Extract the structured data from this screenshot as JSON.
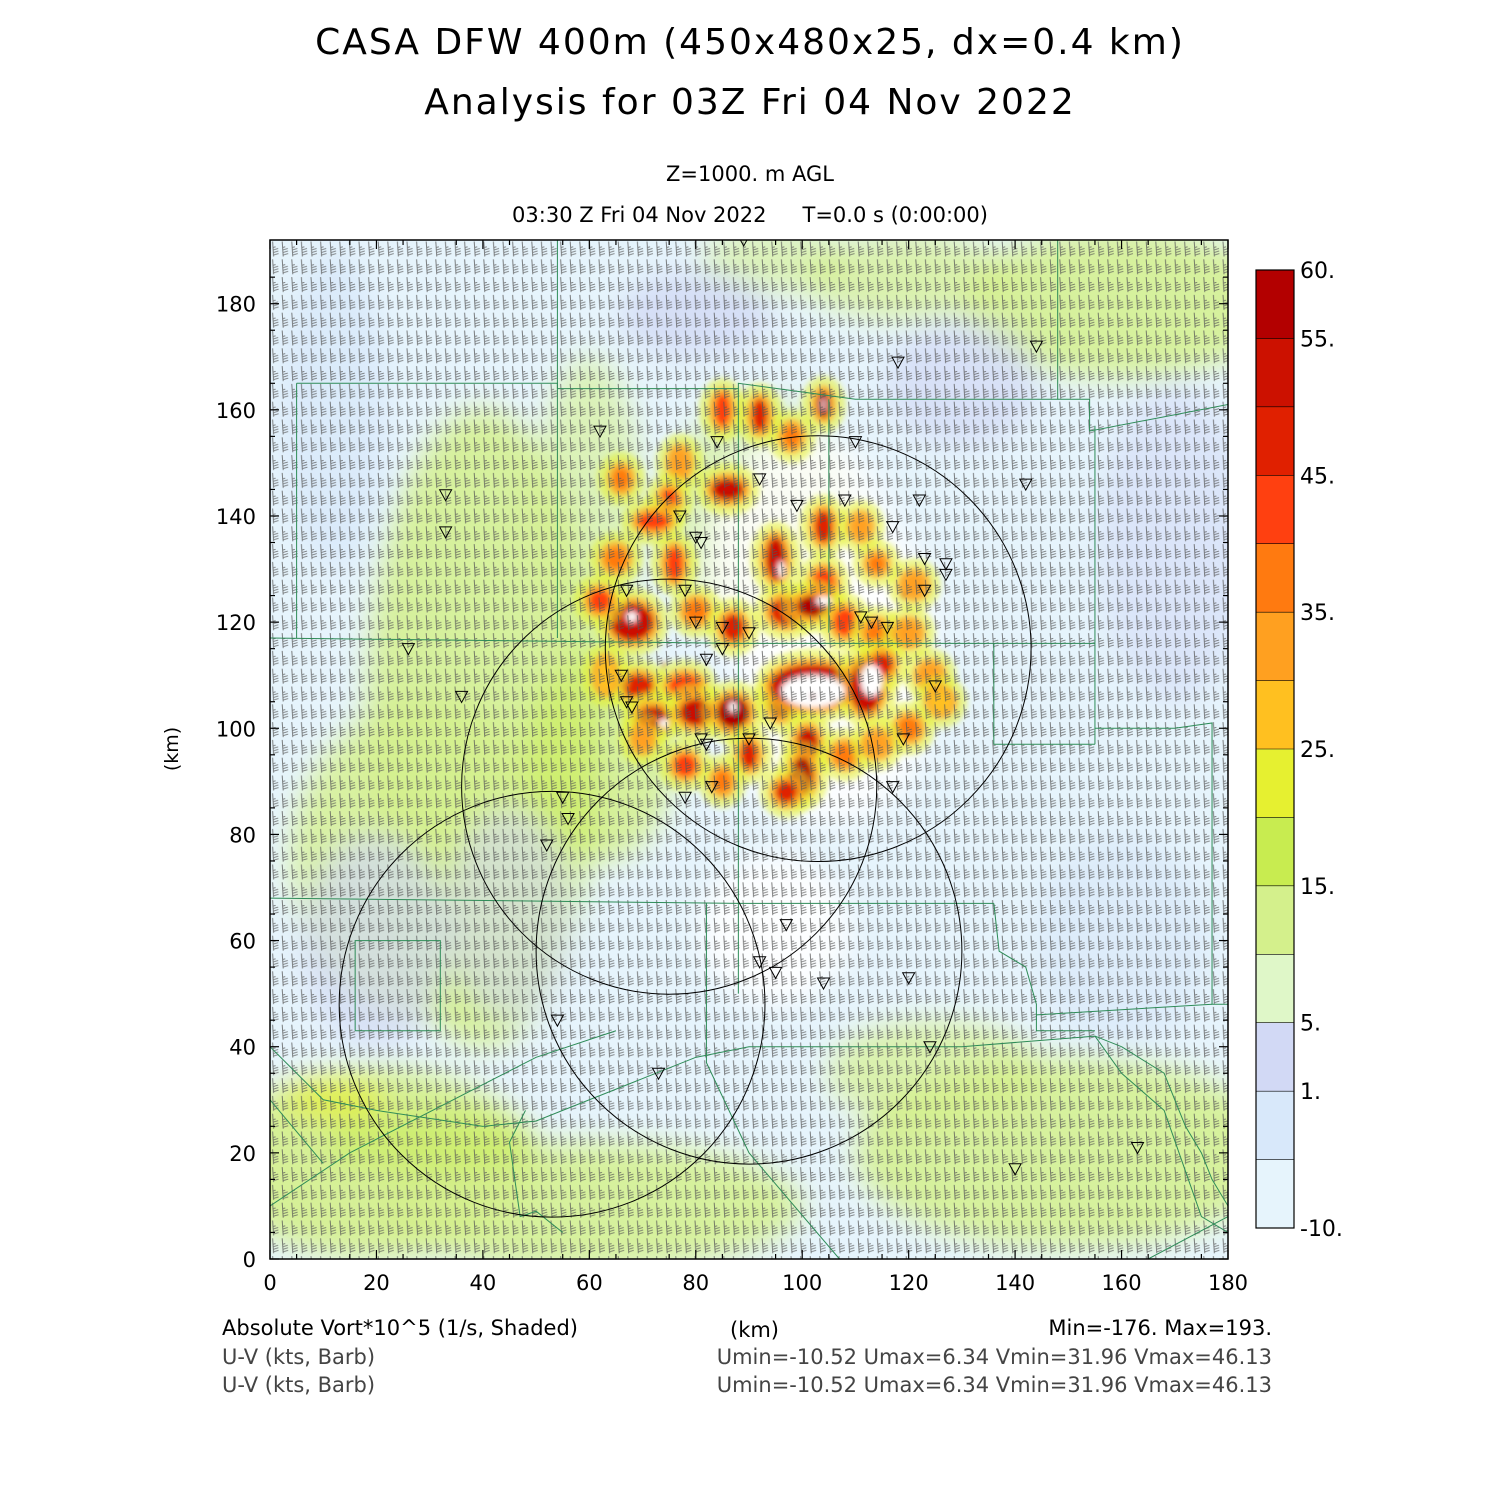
{
  "header": {
    "title_line1": "CASA DFW 400m (450x480x25, dx=0.4 km)",
    "title_line2": "Analysis for 03Z Fri 04 Nov 2022",
    "level": "Z=1000. m AGL",
    "valid_time": "03:30 Z Fri 04 Nov 2022",
    "forecast_time": "T=0.0 s (0:00:00)"
  },
  "axes": {
    "x_label": "(km)",
    "y_label": "(km)",
    "x_ticks": [
      "0",
      "20",
      "40",
      "60",
      "80",
      "100",
      "120",
      "140",
      "160",
      "180"
    ],
    "y_ticks": [
      "0",
      "20",
      "40",
      "60",
      "80",
      "100",
      "120",
      "140",
      "160",
      "180"
    ],
    "x_range": [
      0,
      180
    ],
    "y_range": [
      0,
      192
    ]
  },
  "colorbar": {
    "labels": [
      "60.",
      "55.",
      "45.",
      "35.",
      "25.",
      "15.",
      "5.",
      "1.",
      "-10."
    ],
    "colors": [
      "#b30000",
      "#cc1100",
      "#e02000",
      "#ff4010",
      "#ff7a10",
      "#ffa020",
      "#ffc020",
      "#e6f030",
      "#c8ec50",
      "#d4f08c",
      "#dff7c8",
      "#d2d9f5",
      "#d8e8fa",
      "#e6f4fc"
    ]
  },
  "footer": {
    "field_label": "Absolute Vort*10^5 (1/s, Shaded)",
    "unit": "(km)",
    "minmax": "Min=-176. Max=193.",
    "barb_label_1": "U-V (kts, Barb)",
    "barb_label_2": "U-V (kts, Barb)",
    "uv_stats_1": "Umin=-10.52 Umax=6.34 Vmin=31.96 Vmax=46.13",
    "uv_stats_2": "Umin=-10.52 Umax=6.34 Vmin=31.96 Vmax=46.13"
  },
  "map_data": {
    "field": "absolute vorticity",
    "radar_range_rings_km": [
      {
        "center": [
          103,
          115
        ],
        "radius": 40
      },
      {
        "center": [
          75,
          89
        ],
        "radius": 39
      },
      {
        "center": [
          90,
          58
        ],
        "radius": 40
      },
      {
        "center": [
          53,
          48
        ],
        "radius": 40
      }
    ],
    "station_markers_km": [
      [
        89,
        192
      ],
      [
        118,
        169
      ],
      [
        144,
        172
      ],
      [
        62,
        156
      ],
      [
        84,
        154
      ],
      [
        110,
        154
      ],
      [
        92,
        147
      ],
      [
        142,
        146
      ],
      [
        33,
        144
      ],
      [
        108,
        143
      ],
      [
        99,
        142
      ],
      [
        122,
        143
      ],
      [
        33,
        137
      ],
      [
        77,
        140
      ],
      [
        117,
        138
      ],
      [
        80,
        136
      ],
      [
        81,
        135
      ],
      [
        123,
        132
      ],
      [
        127,
        131
      ],
      [
        127,
        129
      ],
      [
        123,
        126
      ],
      [
        67,
        126
      ],
      [
        78,
        126
      ],
      [
        111,
        121
      ],
      [
        113,
        120
      ],
      [
        116,
        119
      ],
      [
        80,
        120
      ],
      [
        85,
        119
      ],
      [
        90,
        118
      ],
      [
        26,
        115
      ],
      [
        85,
        115
      ],
      [
        82,
        113
      ],
      [
        66,
        110
      ],
      [
        36,
        106
      ],
      [
        67,
        105
      ],
      [
        68,
        104
      ],
      [
        125,
        108
      ],
      [
        94,
        101
      ],
      [
        90,
        98
      ],
      [
        81,
        98
      ],
      [
        119,
        98
      ],
      [
        82,
        97
      ],
      [
        117,
        89
      ],
      [
        83,
        89
      ],
      [
        78,
        87
      ],
      [
        55,
        87
      ],
      [
        56,
        83
      ],
      [
        52,
        78
      ],
      [
        97,
        63
      ],
      [
        92,
        56
      ],
      [
        95,
        54
      ],
      [
        104,
        52
      ],
      [
        120,
        53
      ],
      [
        54,
        45
      ],
      [
        124,
        40
      ],
      [
        73,
        35
      ],
      [
        140,
        17
      ],
      [
        163,
        21
      ]
    ],
    "high_vorticity_areas": [
      {
        "center": [
          102,
          106
        ],
        "level": "60."
      },
      {
        "center": [
          119,
          125
        ],
        "level": "60."
      },
      {
        "center": [
          74,
          112
        ],
        "level": "60."
      },
      {
        "center": [
          95,
          128
        ],
        "level": "60."
      },
      {
        "center": [
          104,
          161
        ],
        "level": "55."
      },
      {
        "center": [
          86,
          144
        ],
        "level": "55."
      },
      {
        "center": [
          72,
          101
        ],
        "level": "55."
      },
      {
        "center": [
          98,
          91
        ],
        "level": "55."
      }
    ]
  }
}
